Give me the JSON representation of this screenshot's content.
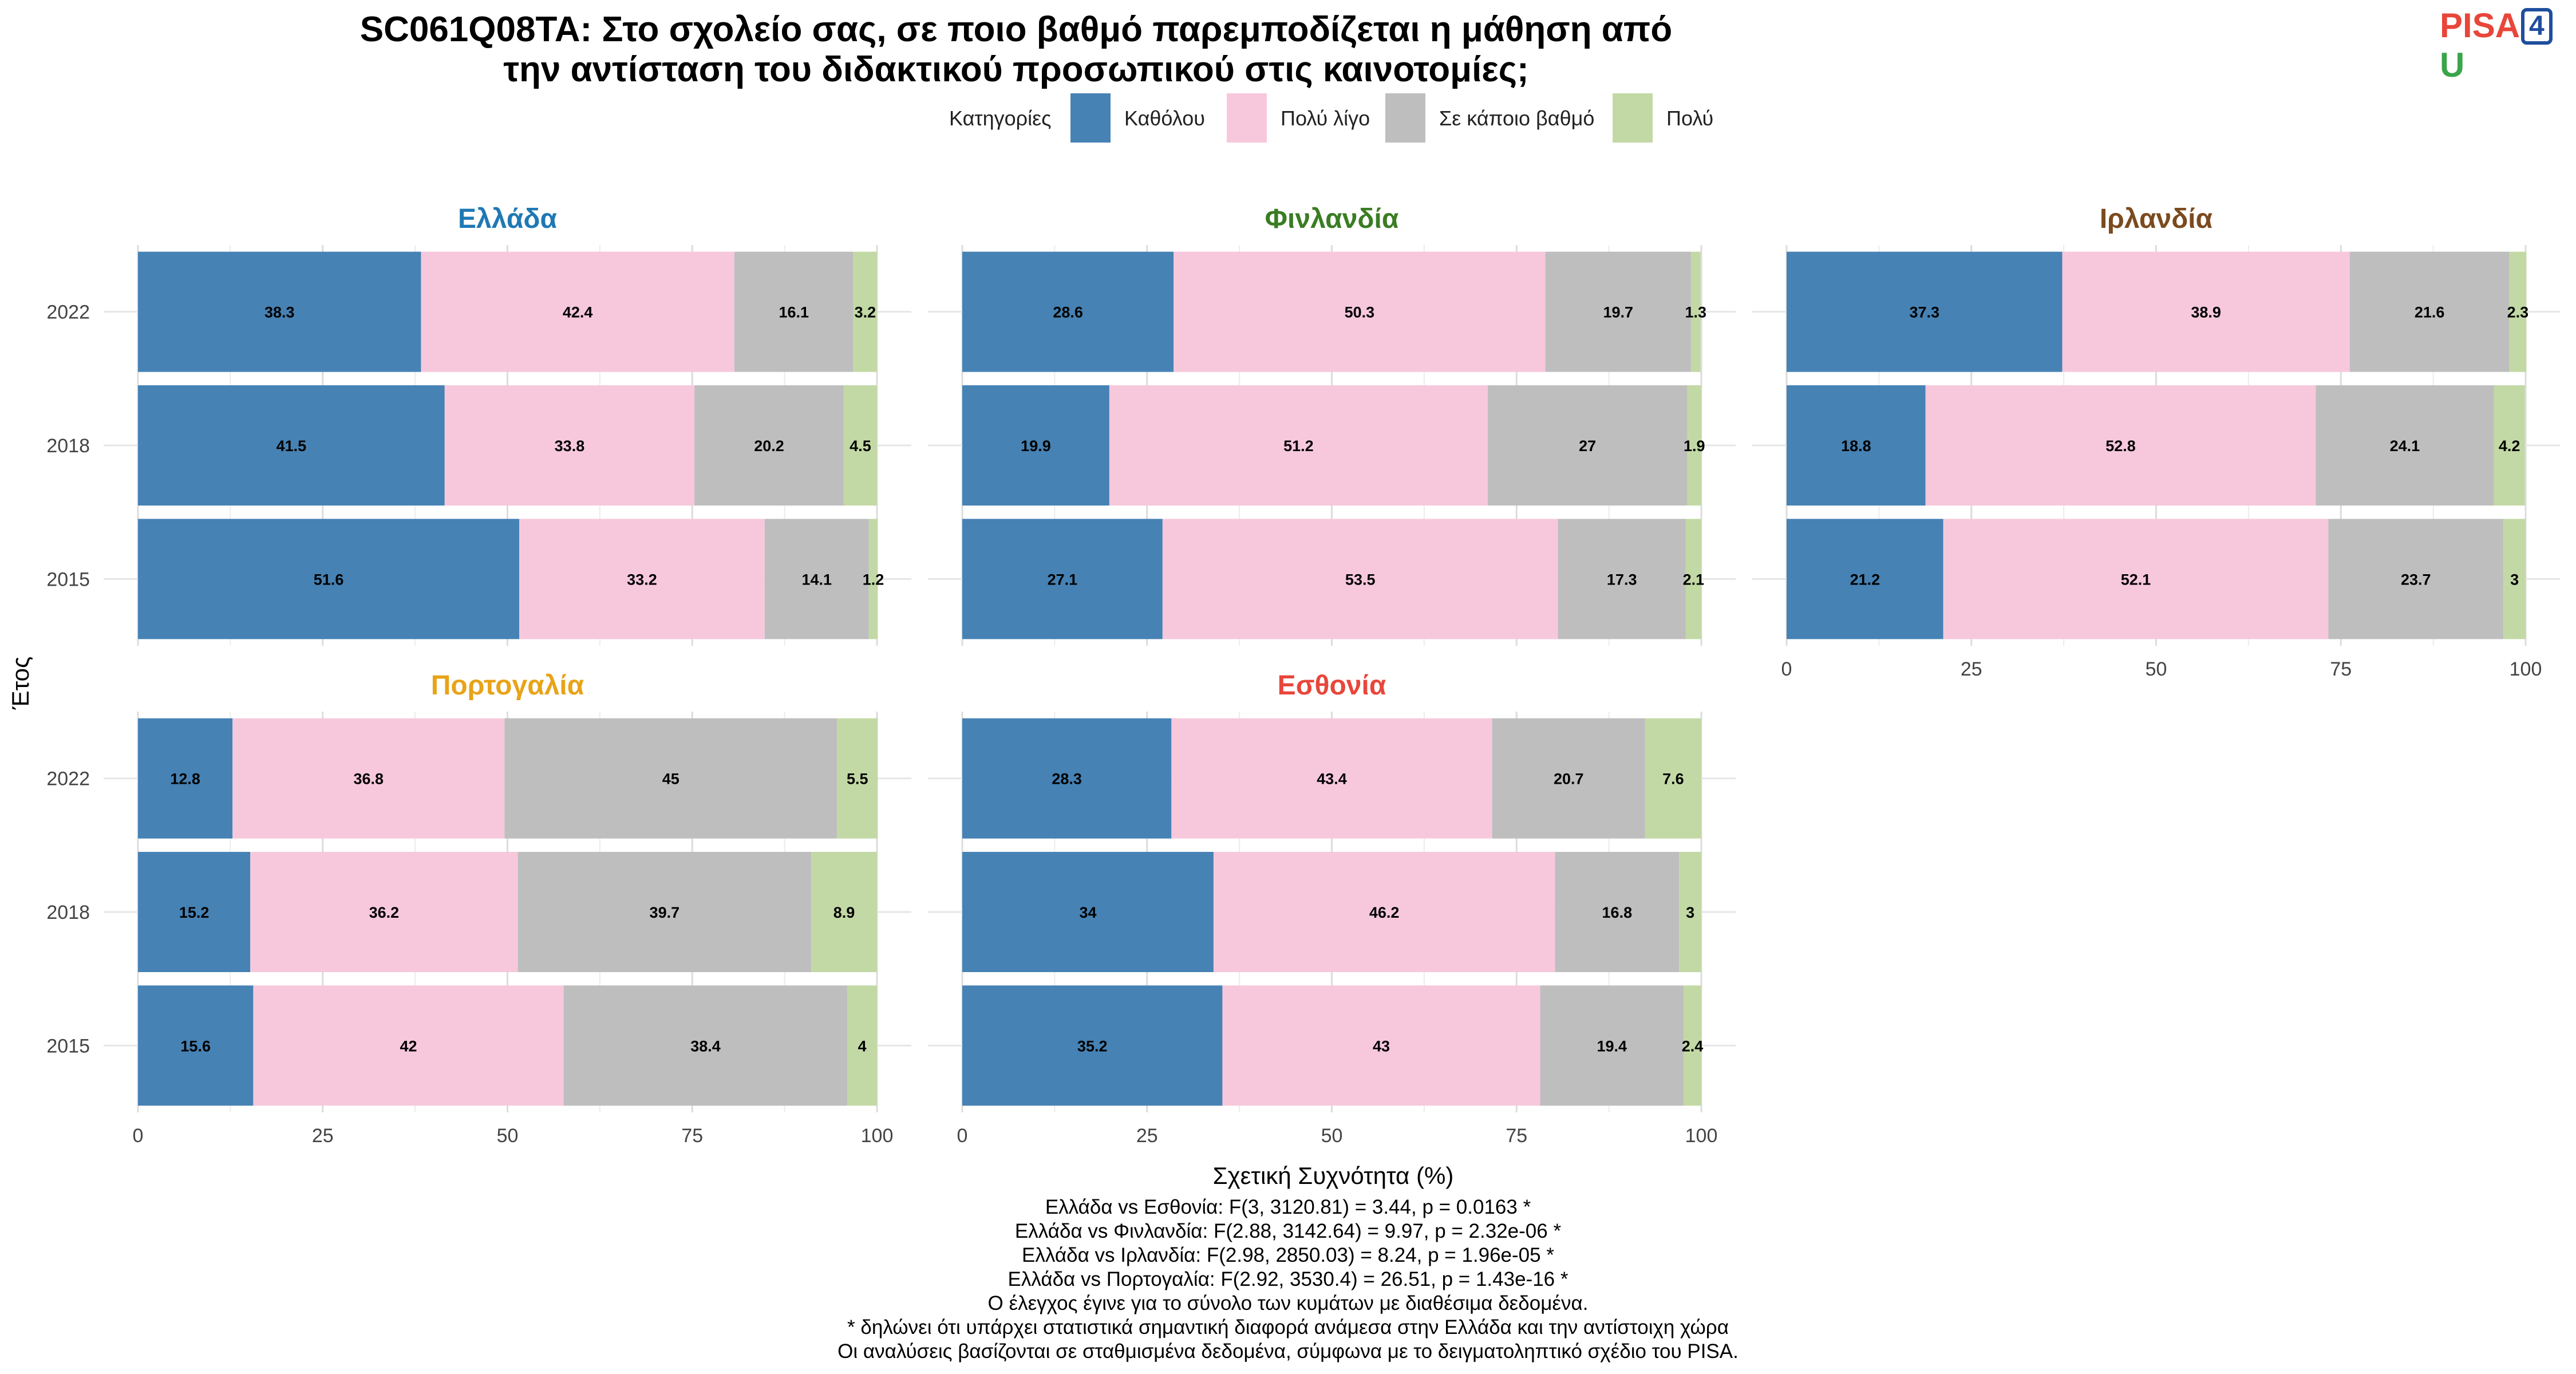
{
  "title_lines": [
    "SC061Q08TA: Στο σχολείο σας, σε ποιο βαθμό παρεμποδίζεται η μάθηση από",
    "την αντίσταση του διδακτικού προσωπικού στις καινοτομίες;"
  ],
  "logo": {
    "part1": "PISA",
    "part2": "4",
    "part3": "U"
  },
  "chart_data": {
    "type": "bar",
    "orientation": "horizontal",
    "stacked": true,
    "legend_title": "Κατηγορίες",
    "legend_position": "top",
    "categories": [
      "Καθόλου",
      "Πολύ λίγο",
      "Σε κάποιο βαθμό",
      "Πολύ"
    ],
    "colors": [
      "#4682b4",
      "#f7c8dc",
      "#bebebe",
      "#c3d9a5"
    ],
    "xlabel": "Σχετική Συχνότητα (%)",
    "ylabel": "Έτος",
    "xlim": [
      0,
      100
    ],
    "xticks": [
      "0",
      "25",
      "50",
      "75",
      "100"
    ],
    "years": [
      "2022",
      "2018",
      "2015"
    ],
    "grid": true,
    "panels": [
      {
        "country": "Ελλάδα",
        "color": "#1f78b4",
        "rows": [
          [
            38.3,
            42.4,
            16.1,
            3.2
          ],
          [
            41.5,
            33.8,
            20.2,
            4.5
          ],
          [
            51.6,
            33.2,
            14.1,
            1.2
          ]
        ]
      },
      {
        "country": "Φινλανδία",
        "color": "#3a7d23",
        "rows": [
          [
            28.6,
            50.3,
            19.7,
            1.3
          ],
          [
            19.9,
            51.2,
            27,
            1.9
          ],
          [
            27.1,
            53.5,
            17.3,
            2.1
          ]
        ]
      },
      {
        "country": "Ιρλανδία",
        "color": "#7b4a1e",
        "rows": [
          [
            37.3,
            38.9,
            21.6,
            2.3
          ],
          [
            18.8,
            52.8,
            24.1,
            4.2
          ],
          [
            21.2,
            52.1,
            23.7,
            3
          ]
        ]
      },
      {
        "country": "Πορτογαλία",
        "color": "#e8a317",
        "rows": [
          [
            12.8,
            36.8,
            45,
            5.5
          ],
          [
            15.2,
            36.2,
            39.7,
            8.9
          ],
          [
            15.6,
            42,
            38.4,
            4
          ]
        ]
      },
      {
        "country": "Εσθονία",
        "color": "#e8463a",
        "rows": [
          [
            28.3,
            43.4,
            20.7,
            7.6
          ],
          [
            34,
            46.2,
            16.8,
            3
          ],
          [
            35.2,
            43,
            19.4,
            2.4
          ]
        ]
      }
    ]
  },
  "footer_lines": [
    "Ελλάδα vs Εσθονία: F(3, 3120.81) = 3.44, p = 0.0163 *",
    "Ελλάδα vs Φινλανδία: F(2.88, 3142.64) = 9.97, p = 2.32e-06 *",
    "Ελλάδα vs Ιρλανδία: F(2.98, 2850.03) = 8.24, p = 1.96e-05 *",
    "Ελλάδα vs Πορτογαλία: F(2.92, 3530.4) = 26.51, p = 1.43e-16 *",
    "Ο έλεγχος έγινε για το σύνολο των κυμάτων με διαθέσιμα δεδομένα.",
    "* δηλώνει ότι υπάρχει στατιστικά σημαντική διαφορά ανάμεσα στην Ελλάδα και την αντίστοιχη χώρα",
    "Οι αναλύσεις βασίζονται σε σταθμισμένα δεδομένα, σύμφωνα με το δειγματοληπτικό σχέδιο του PISA."
  ]
}
